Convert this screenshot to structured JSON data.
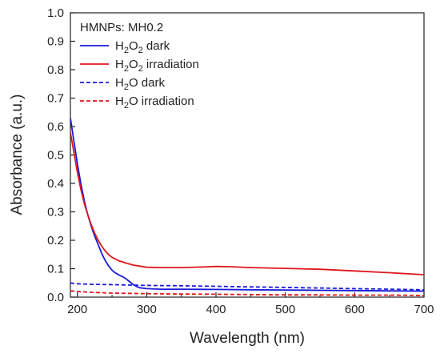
{
  "chart_data": {
    "type": "line",
    "title": "HMNPs: MH0.2",
    "xlabel": "Wavelength (nm)",
    "ylabel": "Absorbance (a.u.)",
    "xlim": [
      190,
      700
    ],
    "ylim": [
      0,
      1.0
    ],
    "xticks": [
      200,
      300,
      400,
      500,
      600,
      700
    ],
    "yticks": [
      0.0,
      0.1,
      0.2,
      0.3,
      0.4,
      0.5,
      0.6,
      0.7,
      0.8,
      0.9,
      1.0
    ],
    "xtick_labels": [
      "200",
      "300",
      "400",
      "500",
      "600",
      "700"
    ],
    "ytick_labels": [
      "0.0",
      "0.1",
      "0.2",
      "0.3",
      "0.4",
      "0.5",
      "0.6",
      "0.7",
      "0.8",
      "0.9",
      "1.0"
    ],
    "legend_position": "top-left",
    "grid": false,
    "series": [
      {
        "name": "H2O2 dark",
        "label_parts": [
          [
            "H",
            false
          ],
          [
            "2",
            true
          ],
          [
            "O",
            false
          ],
          [
            "2",
            true
          ],
          [
            " dark",
            false
          ]
        ],
        "color": "#1a1adb",
        "dash": "solid",
        "x": [
          190,
          195,
          200,
          205,
          210,
          215,
          220,
          225,
          230,
          235,
          240,
          245,
          250,
          255,
          260,
          265,
          270,
          275,
          280,
          285,
          290,
          300,
          320,
          350,
          400,
          450,
          500,
          550,
          600,
          650,
          700
        ],
        "y": [
          0.63,
          0.55,
          0.47,
          0.4,
          0.34,
          0.29,
          0.25,
          0.215,
          0.185,
          0.155,
          0.13,
          0.11,
          0.095,
          0.085,
          0.078,
          0.072,
          0.065,
          0.055,
          0.045,
          0.038,
          0.033,
          0.03,
          0.028,
          0.028,
          0.027,
          0.026,
          0.025,
          0.024,
          0.023,
          0.022,
          0.021
        ]
      },
      {
        "name": "H2O2 irradiation",
        "label_parts": [
          [
            "H",
            false
          ],
          [
            "2",
            true
          ],
          [
            "O",
            false
          ],
          [
            "2",
            true
          ],
          [
            " irradiation",
            false
          ]
        ],
        "color": "#e0161d",
        "dash": "solid",
        "x": [
          190,
          195,
          200,
          205,
          210,
          215,
          220,
          225,
          230,
          235,
          240,
          245,
          250,
          260,
          270,
          280,
          290,
          300,
          320,
          350,
          380,
          400,
          420,
          450,
          500,
          550,
          600,
          650,
          700
        ],
        "y": [
          0.58,
          0.51,
          0.44,
          0.38,
          0.33,
          0.29,
          0.255,
          0.225,
          0.2,
          0.18,
          0.163,
          0.15,
          0.14,
          0.128,
          0.12,
          0.113,
          0.109,
          0.105,
          0.104,
          0.104,
          0.106,
          0.108,
          0.107,
          0.104,
          0.101,
          0.098,
          0.092,
          0.086,
          0.079
        ]
      },
      {
        "name": "H2O dark",
        "label_parts": [
          [
            "H",
            false
          ],
          [
            "2",
            true
          ],
          [
            "O dark",
            false
          ]
        ],
        "color": "#1a1adb",
        "dash": "dashed",
        "x": [
          190,
          200,
          220,
          250,
          300,
          350,
          400,
          450,
          500,
          550,
          600,
          650,
          700
        ],
        "y": [
          0.05,
          0.047,
          0.045,
          0.044,
          0.041,
          0.04,
          0.038,
          0.036,
          0.034,
          0.032,
          0.03,
          0.028,
          0.026
        ]
      },
      {
        "name": "H2O irradiation",
        "label_parts": [
          [
            "H",
            false
          ],
          [
            "2",
            true
          ],
          [
            "O irradiation",
            false
          ]
        ],
        "color": "#e0161d",
        "dash": "dashed",
        "x": [
          190,
          200,
          220,
          250,
          300,
          350,
          400,
          450,
          500,
          550,
          600,
          650,
          700
        ],
        "y": [
          0.022,
          0.02,
          0.017,
          0.014,
          0.012,
          0.011,
          0.01,
          0.009,
          0.008,
          0.008,
          0.007,
          0.007,
          0.006
        ]
      }
    ]
  }
}
